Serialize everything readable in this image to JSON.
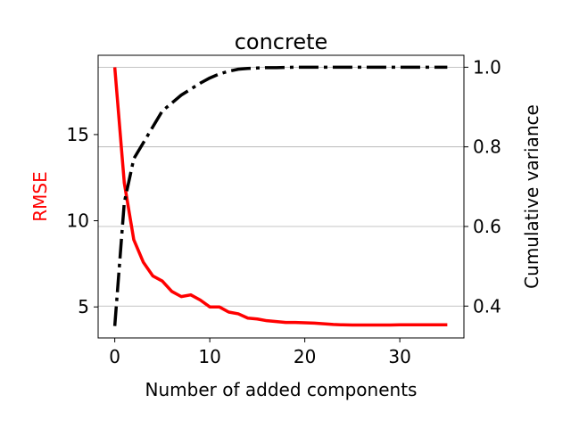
{
  "chart_data": {
    "type": "line",
    "title": "concrete",
    "xlabel": "Number of added components",
    "ylabel_left": "RMSE",
    "ylabel_right": "Cumulative variance",
    "xlim": [
      -1.75,
      36.75
    ],
    "ylim_left": [
      3.2,
      19.6
    ],
    "ylim_right": [
      0.32,
      1.03
    ],
    "x_ticks": [
      0,
      10,
      20,
      30
    ],
    "y_ticks_left": [
      5,
      10,
      15
    ],
    "y_ticks_right": [
      0.4,
      0.6,
      0.8,
      1.0
    ],
    "y_tick_labels_right": [
      "0.4",
      "0.6",
      "0.8",
      "1.0"
    ],
    "grid": "horizontal-right-axis",
    "series": [
      {
        "axis": "left",
        "color": "#ff0000",
        "style": "solid",
        "x": [
          0,
          1,
          2,
          3,
          4,
          5,
          6,
          7,
          8,
          9,
          10,
          11,
          12,
          13,
          14,
          15,
          16,
          17,
          18,
          19,
          20,
          21,
          22,
          23,
          24,
          25,
          26,
          27,
          28,
          29,
          30,
          31,
          32,
          33,
          34,
          35
        ],
        "values": [
          18.9,
          12.2,
          8.9,
          7.6,
          6.8,
          6.5,
          5.9,
          5.6,
          5.7,
          5.4,
          5.0,
          5.0,
          4.7,
          4.6,
          4.35,
          4.3,
          4.2,
          4.15,
          4.1,
          4.1,
          4.08,
          4.06,
          4.02,
          3.98,
          3.96,
          3.95,
          3.95,
          3.95,
          3.95,
          3.95,
          3.96,
          3.96,
          3.96,
          3.96,
          3.96,
          3.96
        ]
      },
      {
        "axis": "right",
        "color": "#000000",
        "style": "dashdot",
        "x": [
          0,
          1,
          2,
          3,
          4,
          5,
          6,
          7,
          8,
          9,
          10,
          11,
          12,
          13,
          14,
          15,
          16,
          17,
          18,
          19,
          20,
          21,
          22,
          23,
          24,
          25,
          26,
          27,
          28,
          29,
          30,
          31,
          32,
          33,
          34,
          35
        ],
        "values": [
          0.35,
          0.66,
          0.77,
          0.81,
          0.85,
          0.89,
          0.91,
          0.93,
          0.945,
          0.96,
          0.973,
          0.983,
          0.99,
          0.995,
          0.997,
          0.998,
          0.999,
          0.999,
          0.9995,
          1.0,
          1.0,
          1.0,
          1.0,
          1.0,
          1.0,
          1.0,
          1.0,
          1.0,
          1.0,
          1.0,
          1.0,
          1.0,
          1.0,
          1.0,
          1.0,
          1.0
        ]
      }
    ]
  }
}
